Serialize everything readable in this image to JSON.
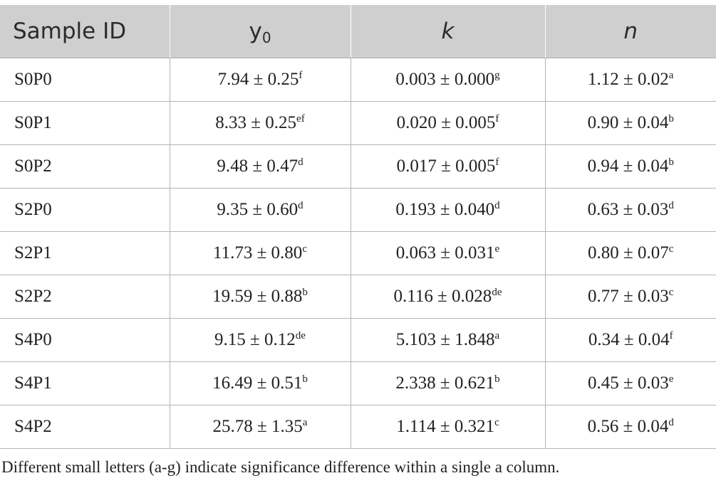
{
  "table": {
    "headers": [
      {
        "main": "Sample ID",
        "sub": ""
      },
      {
        "main": "y",
        "sub": "0"
      },
      {
        "main": "k",
        "sub": ""
      },
      {
        "main": "n",
        "sub": ""
      }
    ],
    "rows": [
      {
        "id": "S0P0",
        "y0": "7.94 ± 0.25",
        "y0_sig": "f",
        "k": "0.003 ± 0.000",
        "k_sig": "g",
        "n": "1.12 ± 0.02",
        "n_sig": "a"
      },
      {
        "id": "S0P1",
        "y0": "8.33 ± 0.25",
        "y0_sig": "ef",
        "k": "0.020 ± 0.005",
        "k_sig": "f",
        "n": "0.90 ± 0.04",
        "n_sig": "b"
      },
      {
        "id": "S0P2",
        "y0": "9.48 ± 0.47",
        "y0_sig": "d",
        "k": "0.017 ± 0.005",
        "k_sig": "f",
        "n": "0.94 ± 0.04",
        "n_sig": "b"
      },
      {
        "id": "S2P0",
        "y0": "9.35 ± 0.60",
        "y0_sig": "d",
        "k": "0.193 ± 0.040",
        "k_sig": "d",
        "n": "0.63 ± 0.03",
        "n_sig": "d"
      },
      {
        "id": "S2P1",
        "y0": "11.73 ± 0.80",
        "y0_sig": "c",
        "k": "0.063 ± 0.031",
        "k_sig": "e",
        "n": "0.80 ± 0.07",
        "n_sig": "c"
      },
      {
        "id": "S2P2",
        "y0": "19.59 ± 0.88",
        "y0_sig": "b",
        "k": "0.116 ± 0.028",
        "k_sig": "de",
        "n": "0.77 ± 0.03",
        "n_sig": "c"
      },
      {
        "id": "S4P0",
        "y0": "9.15 ± 0.12",
        "y0_sig": "de",
        "k": "5.103 ± 1.848",
        "k_sig": "a",
        "n": "0.34 ± 0.04",
        "n_sig": "f"
      },
      {
        "id": "S4P1",
        "y0": "16.49 ± 0.51",
        "y0_sig": "b",
        "k": "2.338 ± 0.621",
        "k_sig": "b",
        "n": "0.45 ± 0.03",
        "n_sig": "e"
      },
      {
        "id": "S4P2",
        "y0": "25.78 ± 1.35",
        "y0_sig": "a",
        "k": "1.114 ± 0.321",
        "k_sig": "c",
        "n": "0.56 ± 0.04",
        "n_sig": "d"
      }
    ]
  },
  "footnote": "Different small letters (a-g) indicate significance difference within a single a column.",
  "colors": {
    "header_bg": "#cfcfcf",
    "border": "#b4b4b4",
    "text": "#222222"
  }
}
